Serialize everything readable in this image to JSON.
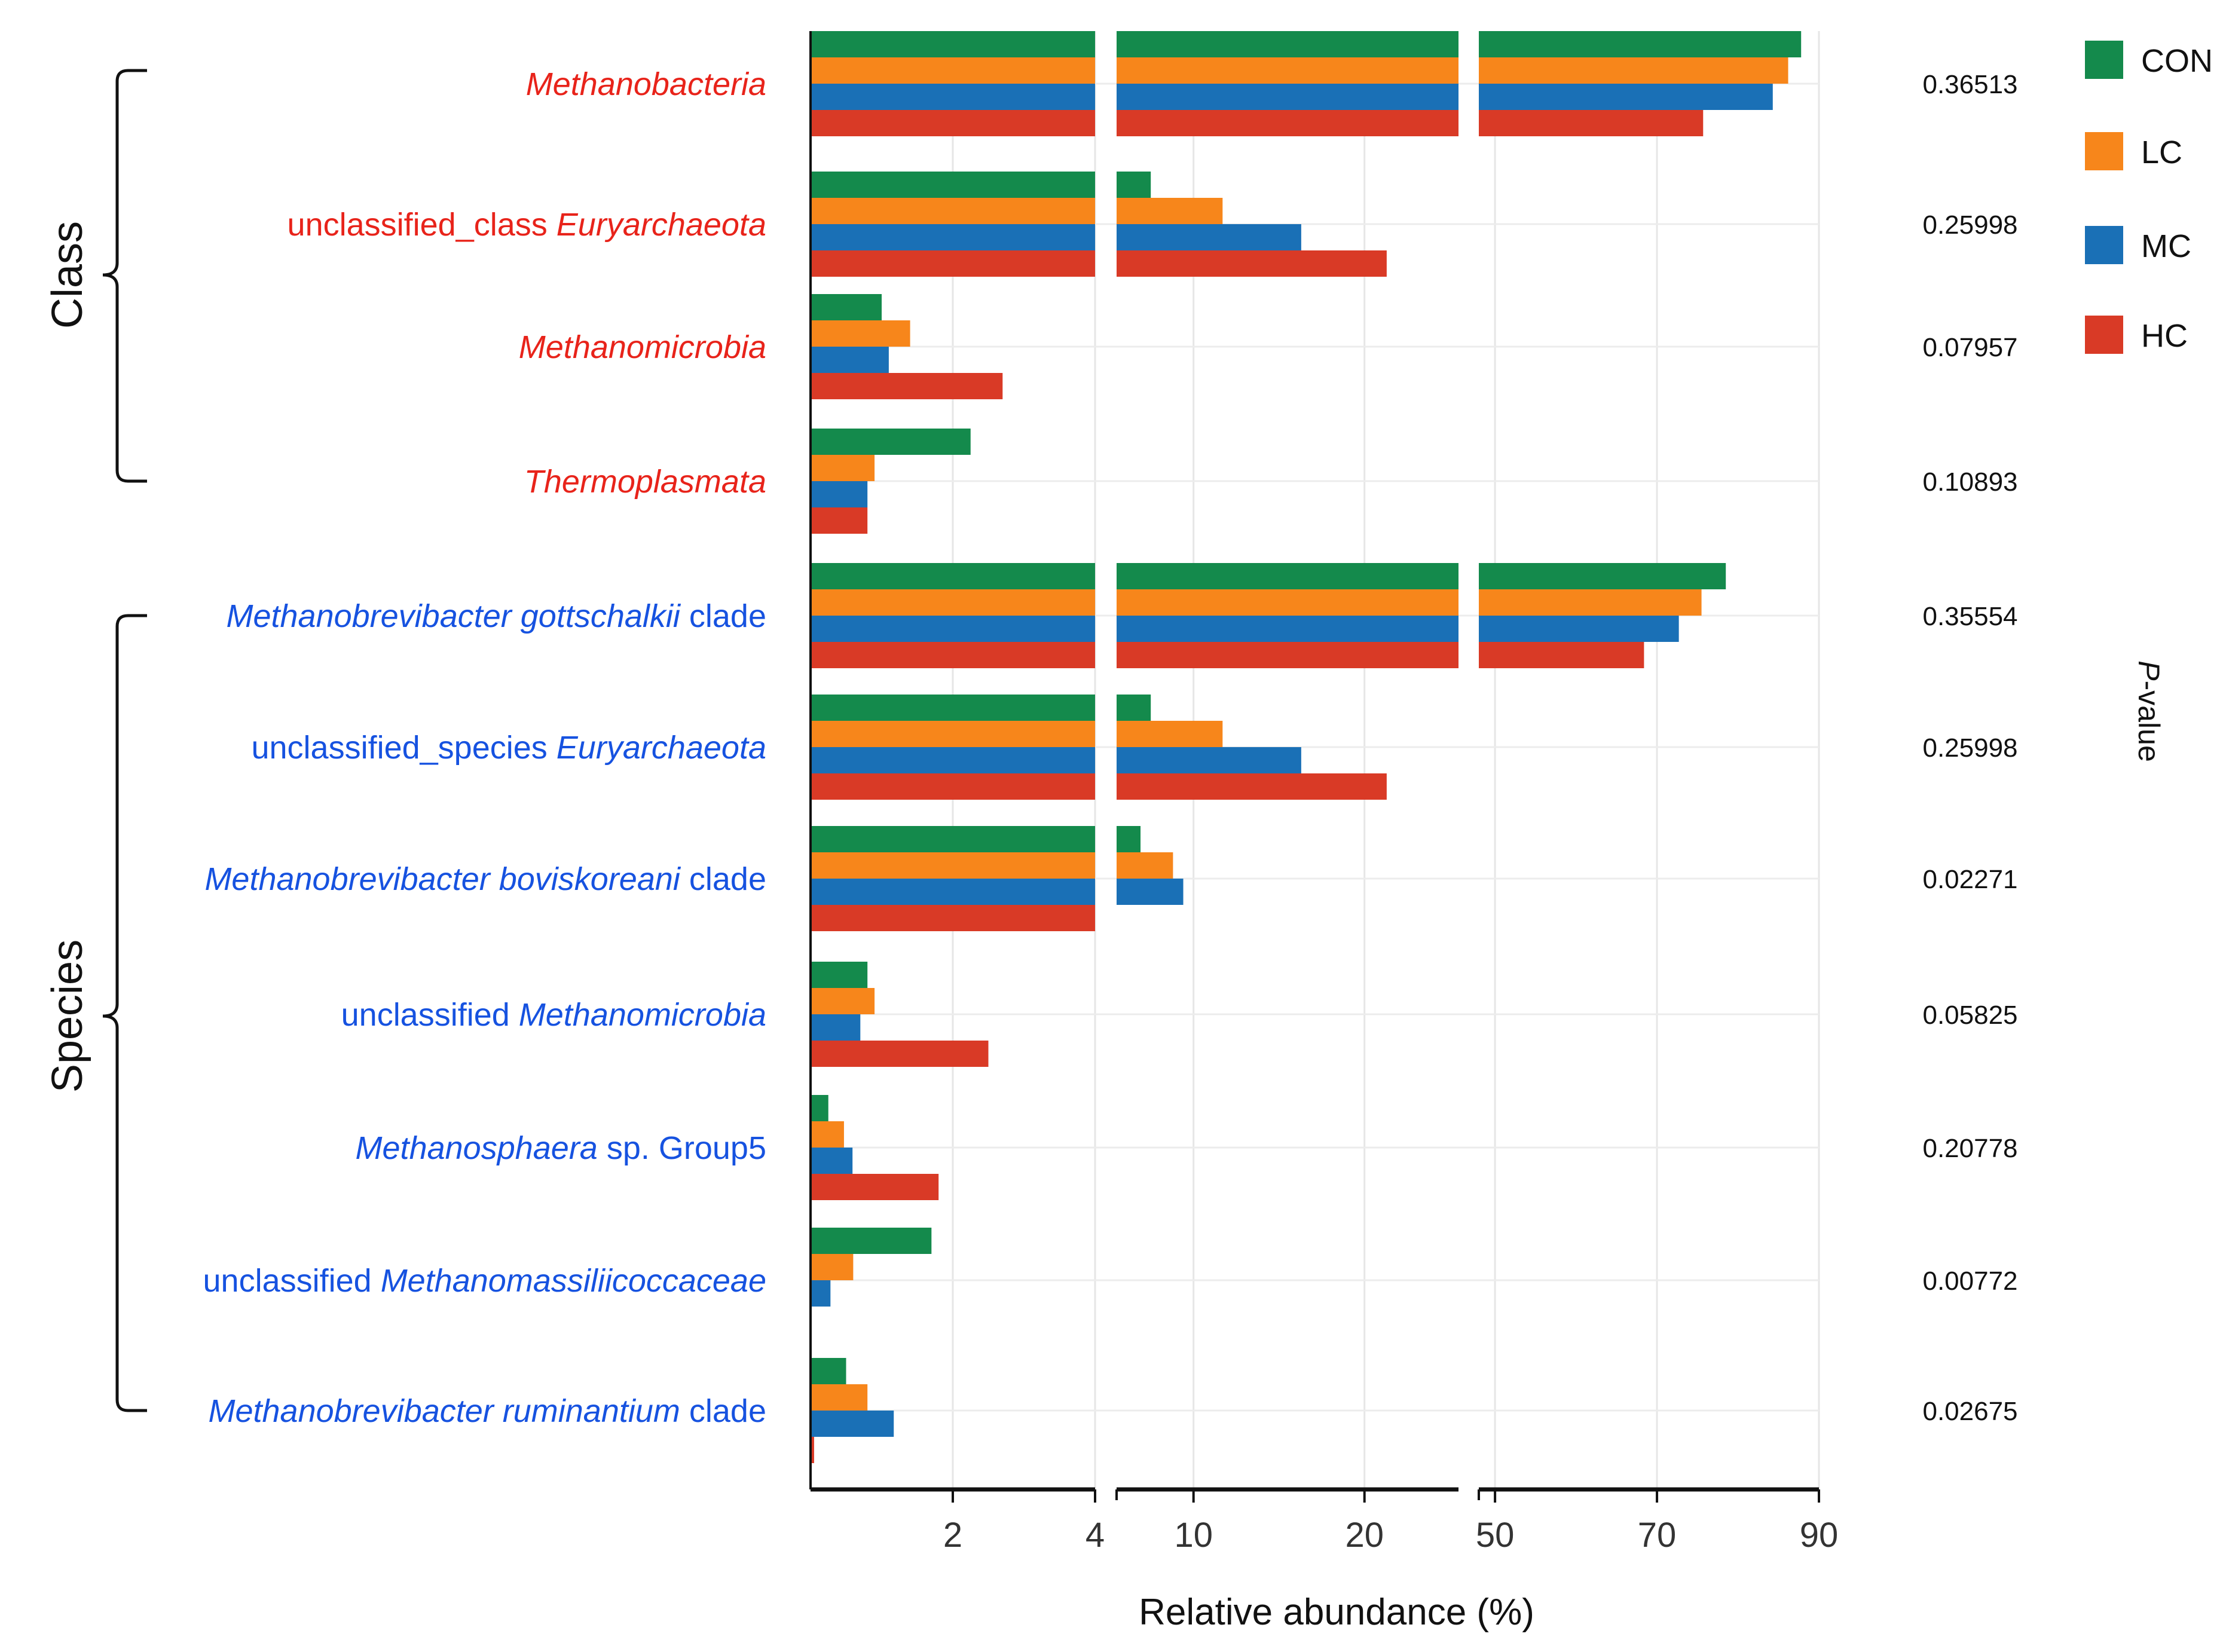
{
  "chart_data": {
    "type": "bar",
    "orientation": "horizontal",
    "broken_axis": true,
    "xlabel": "Relative abundance (%)",
    "pvalue_label": "P-value",
    "groups": [
      {
        "name": "Class",
        "color": "#e8231a"
      },
      {
        "name": "Species",
        "color": "#1652e0"
      }
    ],
    "series": [
      {
        "name": "CON",
        "color": "#148a4c"
      },
      {
        "name": "LC",
        "color": "#f7861b"
      },
      {
        "name": "MC",
        "color": "#1a70b6"
      },
      {
        "name": "HC",
        "color": "#d93a26"
      }
    ],
    "axis_segments": [
      {
        "range": [
          0,
          4
        ],
        "ticks": [
          2,
          4
        ]
      },
      {
        "range": [
          5.5,
          25.5
        ],
        "ticks": [
          10,
          20
        ]
      },
      {
        "range": [
          48,
          90
        ],
        "ticks": [
          50,
          70,
          90
        ]
      }
    ],
    "categories": [
      {
        "group": "Class",
        "parts": [
          {
            "t": "Methanobacteria",
            "i": true
          }
        ],
        "p": "0.36513",
        "values": [
          87.8,
          86.2,
          84.3,
          75.7
        ]
      },
      {
        "group": "Class",
        "parts": [
          {
            "t": "unclassified_class ",
            "i": false
          },
          {
            "t": "Euryarchaeota",
            "i": true
          }
        ],
        "p": "0.25998",
        "values": [
          7.5,
          11.7,
          16.3,
          21.3
        ]
      },
      {
        "group": "Class",
        "parts": [
          {
            "t": "Methanomicrobia",
            "i": true
          }
        ],
        "p": "0.07957",
        "values": [
          1.0,
          1.4,
          1.1,
          2.7
        ]
      },
      {
        "group": "Class",
        "parts": [
          {
            "t": "Thermoplasmata",
            "i": true
          }
        ],
        "p": "0.10893",
        "values": [
          2.25,
          0.9,
          0.8,
          0.8
        ]
      },
      {
        "group": "Species",
        "parts": [
          {
            "t": "Methanobrevibacter gottschalkii",
            "i": true
          },
          {
            "t": " clade",
            "i": false
          }
        ],
        "p": "0.35554",
        "values": [
          78.5,
          75.5,
          72.7,
          68.4
        ]
      },
      {
        "group": "Species",
        "parts": [
          {
            "t": "unclassified_species ",
            "i": false
          },
          {
            "t": "Euryarchaeota",
            "i": true
          }
        ],
        "p": "0.25998",
        "values": [
          7.5,
          11.7,
          16.3,
          21.3
        ]
      },
      {
        "group": "Species",
        "parts": [
          {
            "t": "Methanobrevibacter boviskoreani",
            "i": true
          },
          {
            "t": " clade",
            "i": false
          }
        ],
        "p": "0.02271",
        "values": [
          6.9,
          8.8,
          9.4,
          4.0
        ]
      },
      {
        "group": "Species",
        "parts": [
          {
            "t": "unclassified ",
            "i": false
          },
          {
            "t": "Methanomicrobia",
            "i": true
          }
        ],
        "p": "0.05825",
        "values": [
          0.8,
          0.9,
          0.7,
          2.5
        ]
      },
      {
        "group": "Species",
        "parts": [
          {
            "t": "Methanosphaera",
            "i": true
          },
          {
            "t": " sp. Group5",
            "i": false
          }
        ],
        "p": "0.20778",
        "values": [
          0.25,
          0.47,
          0.59,
          1.8
        ]
      },
      {
        "group": "Species",
        "parts": [
          {
            "t": "unclassified ",
            "i": false
          },
          {
            "t": "Methanomassiliicoccaceae",
            "i": true
          }
        ],
        "p": "0.00772",
        "values": [
          1.7,
          0.6,
          0.28,
          0.0
        ]
      },
      {
        "group": "Species",
        "parts": [
          {
            "t": "Methanobrevibacter ruminantium",
            "i": true
          },
          {
            "t": " clade",
            "i": false
          }
        ],
        "p": "0.02675",
        "values": [
          0.5,
          0.8,
          1.17,
          0.05
        ]
      }
    ]
  }
}
